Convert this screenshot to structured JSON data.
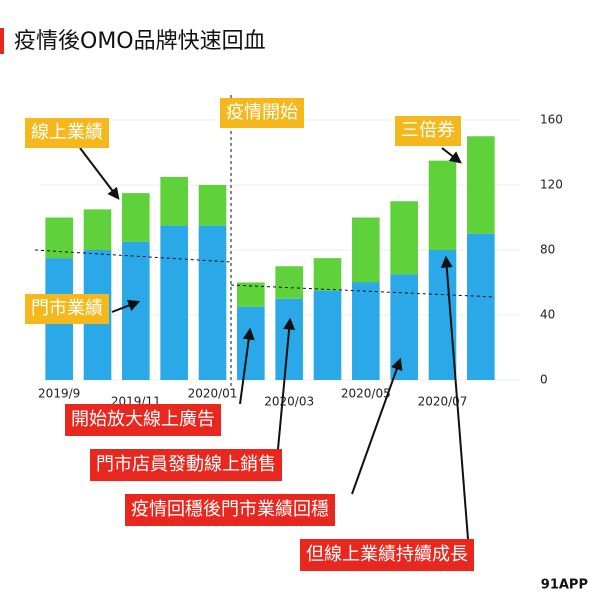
{
  "chart_data": {
    "type": "bar",
    "stacked": true,
    "title": "疫情後OMO品牌快速回血",
    "categories": [
      "2019/9",
      null,
      "2019/11",
      null,
      "2020/01",
      null,
      "2020/03",
      null,
      "2020/05",
      null,
      "2020/07",
      null
    ],
    "series": [
      {
        "name": "門市業績",
        "color": "#2aa8e8",
        "values": [
          75,
          80,
          85,
          95,
          95,
          45,
          50,
          55,
          60,
          65,
          80,
          90
        ]
      },
      {
        "name": "線上業績",
        "color": "#5fd13a",
        "values": [
          25,
          25,
          30,
          30,
          25,
          15,
          20,
          20,
          40,
          45,
          55,
          60
        ]
      }
    ],
    "ylim": [
      0,
      160
    ],
    "yticks": [
      0,
      40,
      80,
      120,
      160
    ],
    "grid": true,
    "annotations": [
      "疫情開始",
      "三倍券",
      "開始放大線上廣告",
      "門市店員發動線上銷售",
      "疫情回穩後門市業績回穩",
      "但線上業績持續成長"
    ],
    "source": "91APP"
  }
}
